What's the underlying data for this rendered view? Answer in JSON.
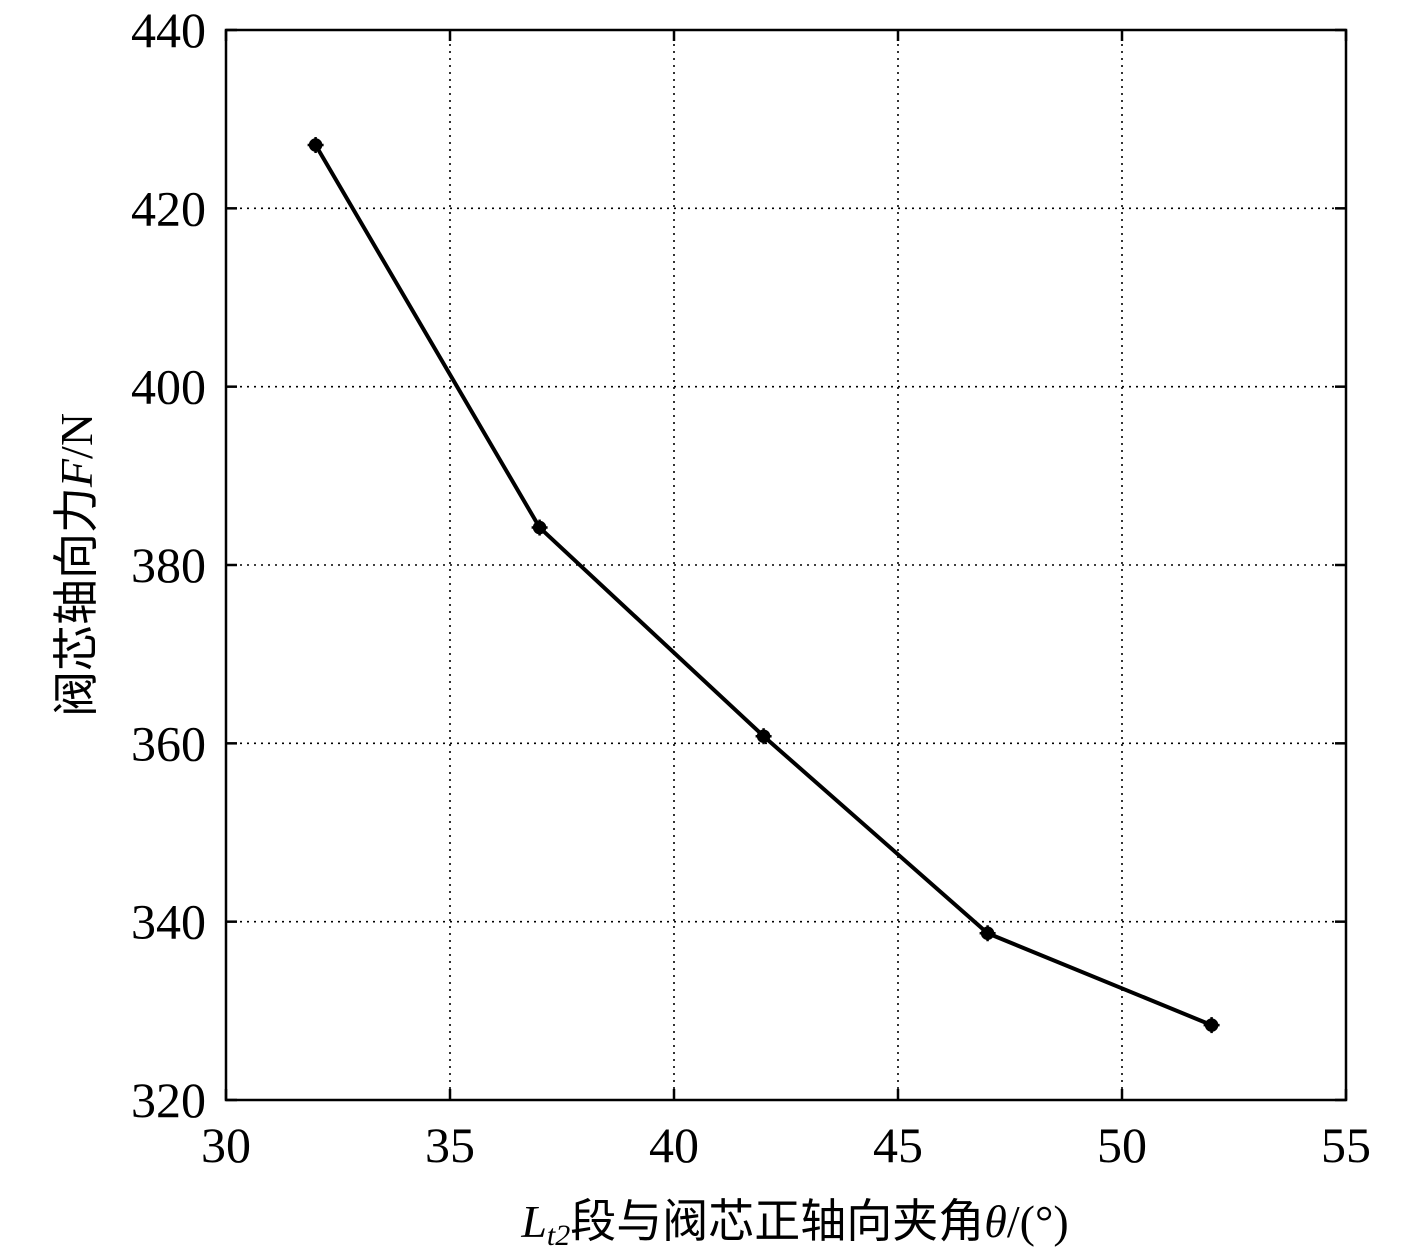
{
  "chart_data": {
    "type": "line",
    "title": "",
    "xlabel": {
      "prefix": "L",
      "subscript": "t2",
      "text": "段与阀芯正轴向夹角",
      "symbol": "θ",
      "unit": "/(°)"
    },
    "ylabel": {
      "text": "阀芯轴向力",
      "symbol": "F",
      "unit": "/N"
    },
    "xlim": [
      30,
      55
    ],
    "ylim": [
      320,
      440
    ],
    "xticks": [
      30,
      35,
      40,
      45,
      50,
      55
    ],
    "yticks": [
      320,
      340,
      360,
      380,
      400,
      420,
      440
    ],
    "grid": true,
    "grid_style": "dotted",
    "x": [
      32,
      37,
      42,
      47,
      52
    ],
    "series": [
      {
        "values": [
          427.1,
          384.2,
          360.8,
          338.7,
          328.4
        ],
        "color": "#000000",
        "marker": "star"
      }
    ]
  }
}
